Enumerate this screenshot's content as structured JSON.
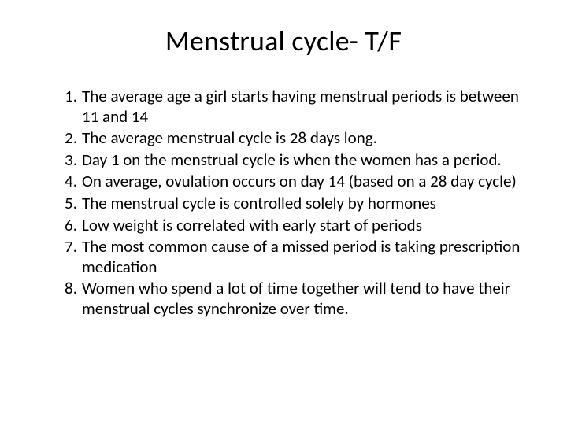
{
  "slide": {
    "title": "Menstrual cycle- T/F",
    "title_fontsize": 36,
    "body_fontsize": 21,
    "text_color": "#000000",
    "background_color": "#ffffff",
    "font_family": "Calibri",
    "items": [
      "The average age a girl starts having menstrual periods is between 11 and 14",
      "The average menstrual cycle is 28 days long.",
      "Day 1 on the menstrual cycle is when the women has a period.",
      "On average, ovulation occurs on day 14 (based on a 28 day cycle)",
      "The menstrual cycle is controlled solely by hormones",
      "Low weight is correlated with early start of periods",
      "The most common cause of a missed period is taking prescription medication",
      "Women who spend a lot of time together will tend to have their menstrual cycles synchronize over time."
    ]
  }
}
